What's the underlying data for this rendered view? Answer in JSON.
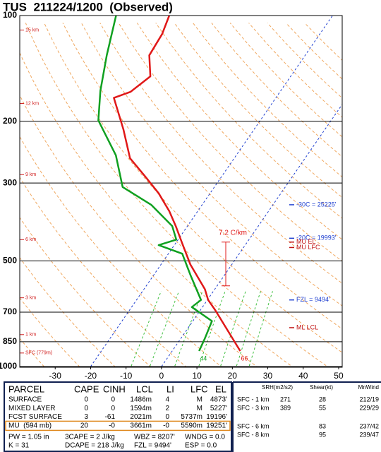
{
  "chart_data": {
    "type": "skewt",
    "title": "TUS  211224/1200  (Observed)",
    "ylim": [
      1000,
      100
    ],
    "y_scale": "log",
    "yticks": [
      100,
      200,
      300,
      500,
      700,
      850,
      1000
    ],
    "xlim": [
      -40,
      51
    ],
    "xticks": [
      -30,
      -20,
      -10,
      0,
      10,
      20,
      30,
      40,
      50
    ],
    "highlighted_isotherms": [
      -20,
      0
    ],
    "isotherm_color": "#2040d0",
    "series": [
      {
        "color": "#e01818",
        "pressure": [
          903,
          692,
          646,
          602,
          512,
          445,
          398,
          361,
          321,
          286,
          255,
          211,
          171.6,
          165,
          149,
          129.8,
          112.9,
          100
        ],
        "values": [
          19.2,
          4.3,
          0.2,
          -2.8,
          -11.7,
          -18.2,
          -23.3,
          -28,
          -34.5,
          -41.9,
          -49.4,
          -56.9,
          -65.7,
          -62.2,
          -59.6,
          -64,
          -64.5,
          -66.1
        ]
      },
      {
        "color": "#10a020",
        "pressure": [
          903,
          834,
          742,
          677,
          646,
          549,
          477,
          451,
          435,
          398,
          346,
          308,
          250,
          199,
          163.7,
          129.8,
          100
        ],
        "values": [
          7.6,
          6.8,
          5.4,
          -3,
          -1.8,
          -9.6,
          -16.1,
          -24.4,
          -20.5,
          -24.3,
          -34.4,
          -45.9,
          -54,
          -65.7,
          -70.9,
          -76,
          -81.1
        ]
      }
    ],
    "height_markers": [
      {
        "label": "15 km",
        "pressure": 110
      },
      {
        "label": "12 km",
        "pressure": 178
      },
      {
        "label": "9 km",
        "pressure": 284
      },
      {
        "label": "6 km",
        "pressure": 435
      },
      {
        "label": "3 km",
        "pressure": 637
      },
      {
        "label": "1 km",
        "pressure": 811
      },
      {
        "label": "SFC (779m)",
        "pressure": 915
      }
    ],
    "level_annotations": [
      {
        "label": "-30C = 25225'",
        "pressure": 346,
        "color": "#2040d0"
      },
      {
        "label": "-20C = 19993'",
        "pressure": 431,
        "color": "#2040d0"
      },
      {
        "label": "MU EL",
        "pressure": 442,
        "color": "#c01010"
      },
      {
        "label": "MU LFC",
        "pressure": 458,
        "color": "#c01010"
      },
      {
        "label": "FZL = 9494'",
        "pressure": 646,
        "color": "#2040d0"
      },
      {
        "label": "ML LCL",
        "pressure": 775,
        "color": "#c01010"
      }
    ],
    "lapse_rate": {
      "label": "7.2 C/km",
      "pressure_top": 442,
      "pressure_bottom": 589,
      "color": "#e01818"
    },
    "surface_labels": [
      {
        "value": 44,
        "color": "#10a020",
        "series": 1
      },
      {
        "value": 66,
        "color": "#e01818",
        "series": 0
      }
    ]
  },
  "parcel_table": {
    "headers": [
      "PARCEL",
      "CAPE",
      "CINH",
      "LCL",
      "LI",
      "LFC",
      "EL"
    ],
    "rows": [
      [
        "SURFACE",
        "0",
        "0",
        "1486m",
        "4",
        "M",
        "4873'"
      ],
      [
        "MIXED LAYER",
        "0",
        "0",
        "1594m",
        "2",
        "M",
        "5227'"
      ],
      [
        "FCST SURFACE",
        "3",
        "-61",
        "2021m",
        "0",
        "5737m",
        "19196'"
      ],
      [
        "MU  (594 mb)",
        "20",
        "-0",
        "3661m",
        "-0",
        "5590m",
        "19251'"
      ]
    ]
  },
  "indices": [
    [
      "PW = 1.05 in",
      "3CAPE = 2 J/kg",
      "WBZ = 8207'",
      "WNDG = 0.0"
    ],
    [
      "K = 31",
      "DCAPE = 218 J/kg",
      "FZL = 9494'",
      "ESP = 0.0"
    ]
  ],
  "kinematics": {
    "headers": [
      "SRH(m2/s2)",
      "Shear(kt)",
      "MnWind"
    ],
    "rows": [
      [
        "SFC - 1 km",
        "271",
        "28",
        "212/19"
      ],
      [
        "SFC - 3 km",
        "389",
        "55",
        "229/29"
      ],
      [
        "SFC - 6 km",
        null,
        "83",
        "237/42"
      ],
      [
        "SFC - 8 km",
        null,
        "95",
        "239/47"
      ]
    ]
  }
}
